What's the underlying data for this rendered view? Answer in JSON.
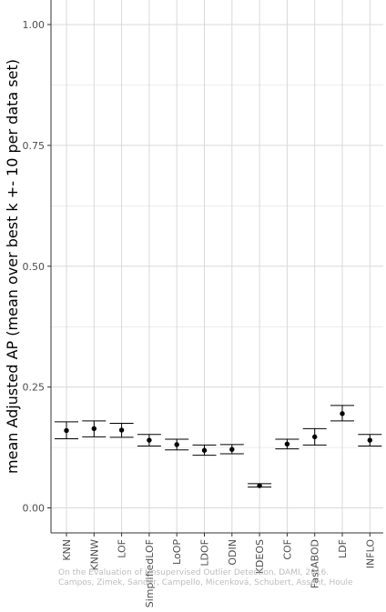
{
  "chart_data": {
    "type": "errorbar",
    "title": "",
    "xlabel": "",
    "ylabel": "mean Adjusted AP (mean over best k +- 10 per data set)",
    "ylim": [
      -0.04,
      1.04
    ],
    "yticks": [
      "0.00",
      "0.25",
      "0.50",
      "0.75",
      "1.00"
    ],
    "ytick_values": [
      0.0,
      0.25,
      0.5,
      0.75,
      1.0
    ],
    "grid": true,
    "categories": [
      "KNN",
      "KNNW",
      "LOF",
      "SimplifiedLOF",
      "LoOP",
      "LDOF",
      "ODIN",
      "KDEOS",
      "COF",
      "FastABOD",
      "LDF",
      "INFLO"
    ],
    "series": [
      {
        "mean": [
          0.16,
          0.164,
          0.161,
          0.14,
          0.131,
          0.119,
          0.121,
          0.046,
          0.132,
          0.147,
          0.195,
          0.14
        ],
        "lower": [
          0.143,
          0.147,
          0.146,
          0.128,
          0.12,
          0.109,
          0.112,
          0.043,
          0.122,
          0.13,
          0.18,
          0.128
        ],
        "upper": [
          0.178,
          0.18,
          0.175,
          0.152,
          0.142,
          0.13,
          0.131,
          0.05,
          0.142,
          0.164,
          0.212,
          0.152
        ]
      }
    ],
    "colors": {
      "grid": "#d9d9d9",
      "axis": "#333333",
      "point": "#000000",
      "watermark": "#bdbdbd"
    }
  },
  "watermark": {
    "line1": "On the Evaluation of Unsupervised Outlier Detection. DAMI, 2016.",
    "line2": "Campos, Zimek, Sander, Campello, Micenková, Schubert, Assent, Houle"
  }
}
